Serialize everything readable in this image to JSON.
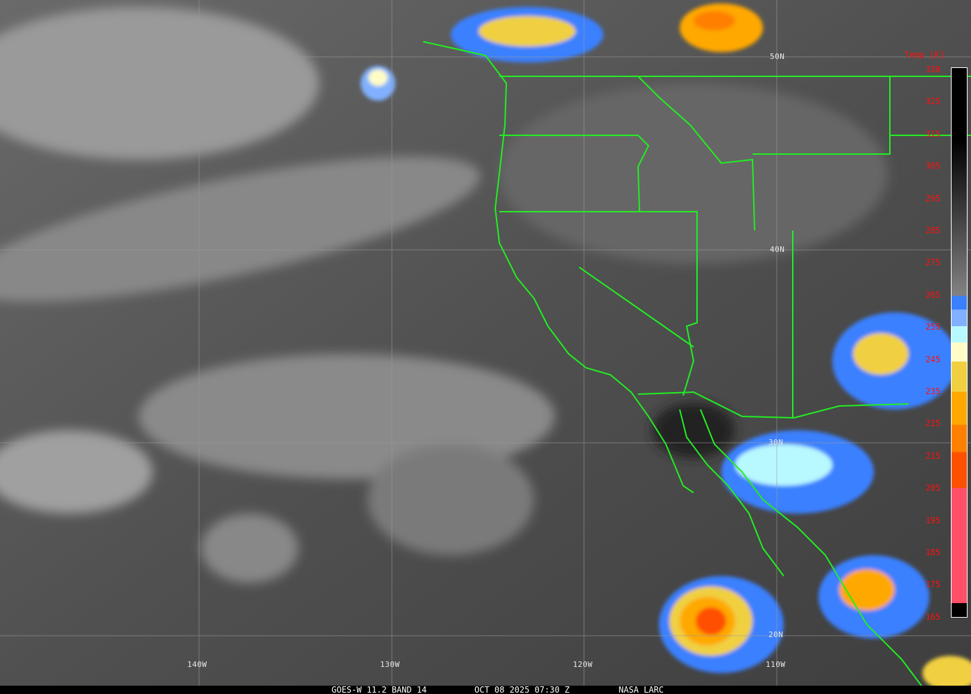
{
  "caption": {
    "product": "GOES-W 11.2 BAND 14",
    "datetime": "OCT 08 2025 07:30 Z",
    "credit": "NASA LARC"
  },
  "latitude_labels": [
    "50N",
    "40N",
    "30N",
    "20N"
  ],
  "longitude_labels": [
    "140W",
    "130W",
    "120W",
    "110W"
  ],
  "colorbar": {
    "title": "Temp [K]",
    "ticks": [
      "330",
      "325",
      "315",
      "305",
      "295",
      "285",
      "275",
      "265",
      "255",
      "245",
      "235",
      "225",
      "215",
      "205",
      "195",
      "185",
      "175",
      "165"
    ],
    "colors": [
      "#000000",
      "#808080",
      "#3a80ff",
      "#80b0ff",
      "#b8f8ff",
      "#fffcc8",
      "#f0d040",
      "#ffa800",
      "#ff8000",
      "#ff5000",
      "#ff5068"
    ]
  },
  "border_color": "#22ee22"
}
